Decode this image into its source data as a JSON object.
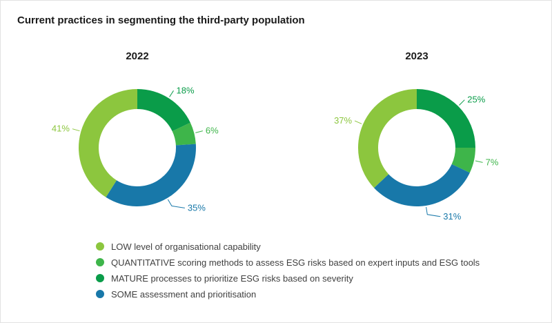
{
  "title": "Current practices in segmenting the third-party population",
  "colors": {
    "low": "#8CC63E",
    "quantitative": "#3EB54A",
    "mature": "#0A9C49",
    "some": "#1878A9"
  },
  "chart_data": [
    {
      "type": "pie",
      "donut": true,
      "title": "2022",
      "unit": "%",
      "start_angle_deg": 0,
      "direction": "clockwise",
      "slices": [
        {
          "key": "mature",
          "label": "MATURE processes to prioritize ESG risks based on severity",
          "value": 18,
          "display": "18%",
          "color": "#0A9C49"
        },
        {
          "key": "quantitative",
          "label": "QUANTITATIVE scoring methods to assess ESG risks based on expert inputs and ESG tools",
          "value": 6,
          "display": "6%",
          "color": "#3EB54A"
        },
        {
          "key": "some",
          "label": "SOME assessment and prioritisation",
          "value": 35,
          "display": "35%",
          "color": "#1878A9"
        },
        {
          "key": "low",
          "label": "LOW level of organisational capability",
          "value": 41,
          "display": "41%",
          "color": "#8CC63E"
        }
      ]
    },
    {
      "type": "pie",
      "donut": true,
      "title": "2023",
      "unit": "%",
      "start_angle_deg": 0,
      "direction": "clockwise",
      "slices": [
        {
          "key": "mature",
          "label": "MATURE processes to prioritize ESG risks based on severity",
          "value": 25,
          "display": "25%",
          "color": "#0A9C49"
        },
        {
          "key": "quantitative",
          "label": "QUANTITATIVE scoring methods to assess ESG risks based on expert inputs and ESG tools",
          "value": 7,
          "display": "7%",
          "color": "#3EB54A"
        },
        {
          "key": "some",
          "label": "SOME assessment and prioritisation",
          "value": 31,
          "display": "31%",
          "color": "#1878A9"
        },
        {
          "key": "low",
          "label": "LOW level of organisational capability",
          "value": 37,
          "display": "37%",
          "color": "#8CC63E"
        }
      ]
    }
  ],
  "legend": [
    {
      "label": "LOW level of organisational capability",
      "color": "#8CC63E"
    },
    {
      "label": "QUANTITATIVE scoring methods to assess ESG risks based on expert inputs and ESG tools",
      "color": "#3EB54A"
    },
    {
      "label": "MATURE processes to prioritize ESG risks based on severity",
      "color": "#0A9C49"
    },
    {
      "label": "SOME assessment and prioritisation",
      "color": "#1878A9"
    }
  ]
}
